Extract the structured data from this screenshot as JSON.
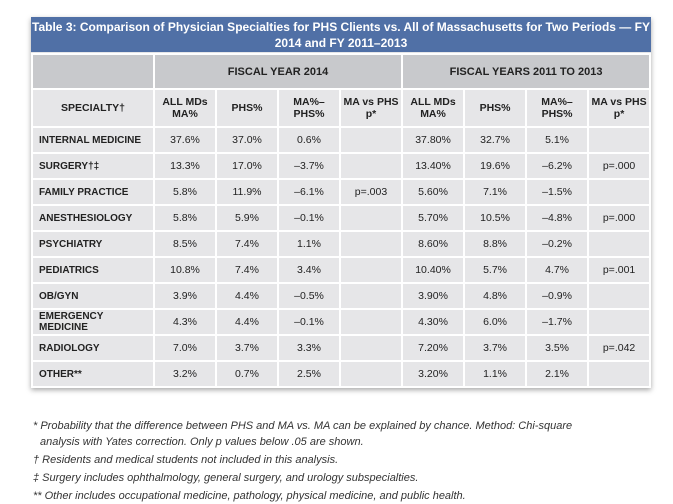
{
  "title": "Table 3: Comparison of Physician Specialties for PHS Clients vs. All of Massachusetts for Two Periods — FY 2014 and FY 2011–2013",
  "groups": [
    "FISCAL YEAR 2014",
    "FISCAL YEARS 2011 TO 2013"
  ],
  "columns": {
    "specialty": "SPECIALTY†",
    "all_mds": [
      "ALL MDs",
      "MA%"
    ],
    "phs": "PHS%",
    "diff": [
      "MA%–",
      "PHS%"
    ],
    "p": [
      "MA vs PHS",
      "p*"
    ]
  },
  "rows": [
    {
      "specialty": "INTERNAL MEDICINE",
      "v": [
        "37.6%",
        "37.0%",
        "0.6%",
        "",
        "37.80%",
        "32.7%",
        "5.1%",
        ""
      ]
    },
    {
      "specialty": "SURGERY†‡",
      "v": [
        "13.3%",
        "17.0%",
        "–3.7%",
        "",
        "13.40%",
        "19.6%",
        "–6.2%",
        "p=.000"
      ]
    },
    {
      "specialty": "FAMILY PRACTICE",
      "v": [
        "5.8%",
        "11.9%",
        "–6.1%",
        "p=.003",
        "5.60%",
        "7.1%",
        "–1.5%",
        ""
      ]
    },
    {
      "specialty": "ANESTHESIOLOGY",
      "v": [
        "5.8%",
        "5.9%",
        "–0.1%",
        "",
        "5.70%",
        "10.5%",
        "–4.8%",
        "p=.000"
      ]
    },
    {
      "specialty": "PSYCHIATRY",
      "v": [
        "8.5%",
        "7.4%",
        "1.1%",
        "",
        "8.60%",
        "8.8%",
        "–0.2%",
        ""
      ]
    },
    {
      "specialty": "PEDIATRICS",
      "v": [
        "10.8%",
        "7.4%",
        "3.4%",
        "",
        "10.40%",
        "5.7%",
        "4.7%",
        "p=.001"
      ]
    },
    {
      "specialty": "OB/GYN",
      "v": [
        "3.9%",
        "4.4%",
        "–0.5%",
        "",
        "3.90%",
        "4.8%",
        "–0.9%",
        ""
      ]
    },
    {
      "specialty": "EMERGENCY MEDICINE",
      "v": [
        "4.3%",
        "4.4%",
        "–0.1%",
        "",
        "4.30%",
        "6.0%",
        "–1.7%",
        ""
      ]
    },
    {
      "specialty": "RADIOLOGY",
      "v": [
        "7.0%",
        "3.7%",
        "3.3%",
        "",
        "7.20%",
        "3.7%",
        "3.5%",
        "p=.042"
      ]
    },
    {
      "specialty": "OTHER**",
      "v": [
        "3.2%",
        "0.7%",
        "2.5%",
        "",
        "3.20%",
        "1.1%",
        "2.1%",
        ""
      ]
    }
  ],
  "footnotes": [
    "* Probability that the difference between PHS and MA vs. MA can be explained by chance. Method: Chi-square",
    "analysis with Yates correction. Only p values below .05 are shown.",
    "† Residents and medical students not included in this analysis.",
    "‡ Surgery includes ophthalmology, general surgery, and urology subspecialties.",
    "** Other includes occupational medicine, pathology, physical medicine, and public health."
  ],
  "colors": {
    "title_bg": "#5070a6",
    "group_bg": "#c8c9cc",
    "cell_bg": "#e6e6e8"
  }
}
